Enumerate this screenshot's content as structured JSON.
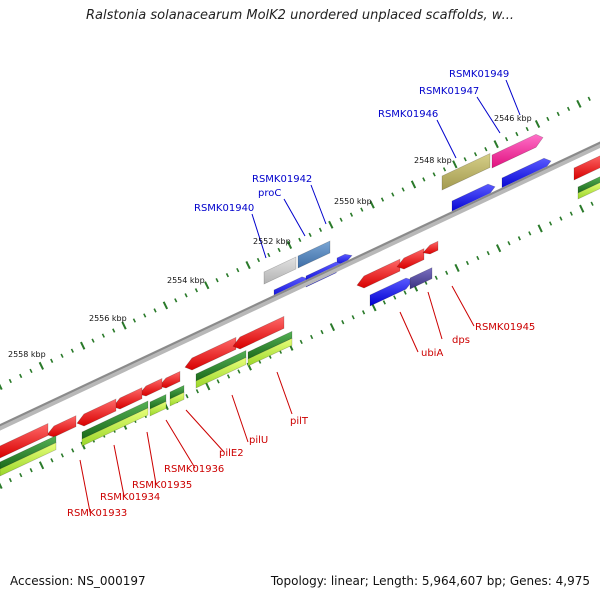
{
  "title": "Ralstonia solanacearum MolK2 unordered unplaced scaffolds, w...",
  "footer": {
    "accession": "Accession: NS_000197",
    "summary": "Topology: linear; Length: 5,964,607 bp; Genes: 4,975"
  },
  "colors": {
    "backbone": "#8a8a8a",
    "forward_labels": "#0000cc",
    "reverse_labels": "#cc0000",
    "tick_outer": "#2a7a2a",
    "tick_inner": "#2a7a2a"
  },
  "kbp_labels": [
    "2546 kbp",
    "2548 kbp",
    "2550 kbp",
    "2552 kbp",
    "2554 kbp",
    "2556 kbp",
    "2558 kbp"
  ],
  "forward_genes": [
    "RSMK01949",
    "RSMK01947",
    "RSMK01946",
    "RSMK01942",
    "proC",
    "RSMK01940"
  ],
  "reverse_genes": [
    "RSMK01945",
    "dps",
    "ubiA",
    "pilT",
    "pilU",
    "pilE2",
    "RSMK01936",
    "RSMK01935",
    "RSMK01934",
    "RSMK01933"
  ]
}
